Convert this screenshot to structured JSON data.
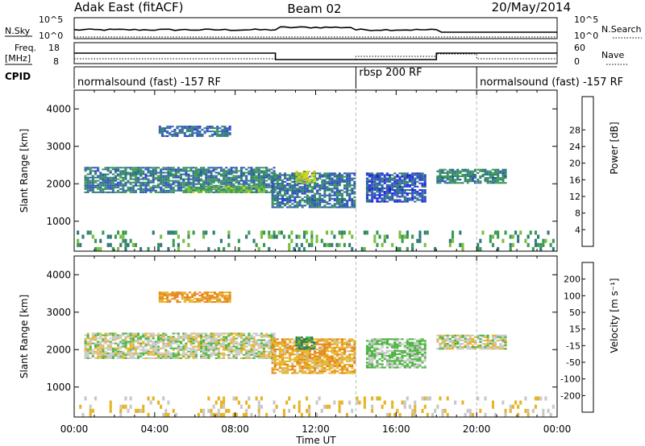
{
  "header": {
    "station": "Adak East (fitACF)",
    "beam": "Beam 02",
    "date": "20/May/2014"
  },
  "noise_panel": {
    "left_label": "N.Sky",
    "right_label": "N.Search",
    "left_ticks": [
      "10^5",
      "10^0"
    ],
    "right_ticks": [
      "10^5",
      "10^0"
    ]
  },
  "freq_panel": {
    "left_label_1": "Freq.",
    "left_label_2": "[MHz]",
    "right_label": "Nave",
    "left_ticks": [
      "18",
      "8"
    ],
    "right_ticks": [
      "60",
      "0"
    ]
  },
  "cpid_panel": {
    "label": "CPID",
    "segments": [
      "normalsound (fast) -157 RF",
      "rbsp 200 RF",
      "normalsound (fast) -157 RF"
    ],
    "boundaries_hours": [
      14,
      20
    ]
  },
  "time_axis": {
    "label": "Time UT",
    "ticks": [
      "00:00",
      "04:00",
      "08:00",
      "12:00",
      "16:00",
      "20:00",
      "00:00"
    ]
  },
  "colors": {
    "power": [
      "#1e1ee6",
      "#2d4fc4",
      "#317a7a",
      "#3b9a52",
      "#78c03c",
      "#d6d61e",
      "#f2a21e",
      "#e6641e",
      "#d21e1e"
    ],
    "velocity": [
      "#1e2ed2",
      "#3255a8",
      "#2e7e5a",
      "#48b43c",
      "#c8c8c8",
      "#e6b428",
      "#e68214",
      "#e04614",
      "#d21e1e"
    ]
  },
  "chart_data": [
    {
      "type": "heatmap",
      "title": "Power",
      "xlabel": "Time UT",
      "ylabel": "Slant Range [km]",
      "xlim": [
        0,
        24
      ],
      "ylim": [
        200,
        4500
      ],
      "yticks": [
        "1000",
        "2000",
        "3000",
        "4000"
      ],
      "colorbar": {
        "label": "Power [dB]",
        "ticks": [
          "4",
          "8",
          "12",
          "16",
          "20",
          "24",
          "28"
        ],
        "range": [
          0,
          32
        ]
      },
      "regions": [
        {
          "t_start": 0.5,
          "t_end": 10.0,
          "range_low": 1750,
          "range_high": 2450,
          "power": 9
        },
        {
          "t_start": 5.5,
          "t_end": 9.5,
          "range_low": 1750,
          "range_high": 1950,
          "power": 14
        },
        {
          "t_start": 4.2,
          "t_end": 7.8,
          "range_low": 3250,
          "range_high": 3550,
          "power": 7
        },
        {
          "t_start": 9.8,
          "t_end": 14.0,
          "range_low": 1350,
          "range_high": 2300,
          "power": 8
        },
        {
          "t_start": 11.0,
          "t_end": 12.0,
          "range_low": 2000,
          "range_high": 2350,
          "power": 18
        },
        {
          "t_start": 14.5,
          "t_end": 17.5,
          "range_low": 1500,
          "range_high": 2300,
          "power": 6
        },
        {
          "t_start": 18.0,
          "t_end": 21.5,
          "range_low": 2000,
          "range_high": 2400,
          "power": 10
        },
        {
          "t_start": 0.0,
          "t_end": 24.0,
          "range_low": 200,
          "range_high": 750,
          "power": 12
        }
      ]
    },
    {
      "type": "heatmap",
      "title": "Velocity",
      "xlabel": "Time UT",
      "ylabel": "Slant Range [km]",
      "xlim": [
        0,
        24
      ],
      "ylim": [
        200,
        4500
      ],
      "yticks": [
        "1000",
        "2000",
        "3000",
        "4000"
      ],
      "colorbar": {
        "label": "Velocity [m s⁻¹]",
        "ticks": [
          "200",
          "100",
          "50",
          "15",
          "-15",
          "-50",
          "-100",
          "-200"
        ],
        "range": [
          -250,
          250
        ]
      },
      "regions": [
        {
          "t_start": 0.5,
          "t_end": 10.0,
          "range_low": 1750,
          "range_high": 2450,
          "velocity": 0
        },
        {
          "t_start": 4.2,
          "t_end": 7.8,
          "range_low": 3250,
          "range_high": 3550,
          "velocity": -60
        },
        {
          "t_start": 9.8,
          "t_end": 14.0,
          "range_low": 1350,
          "range_high": 2300,
          "velocity": -40
        },
        {
          "t_start": 11.0,
          "t_end": 12.0,
          "range_low": 2000,
          "range_high": 2350,
          "velocity": 60
        },
        {
          "t_start": 14.5,
          "t_end": 17.5,
          "range_low": 1500,
          "range_high": 2300,
          "velocity": 20
        },
        {
          "t_start": 18.0,
          "t_end": 21.5,
          "range_low": 2000,
          "range_high": 2400,
          "velocity": 0
        },
        {
          "t_start": 0.0,
          "t_end": 24.0,
          "range_low": 200,
          "range_high": 750,
          "velocity": -20
        }
      ]
    }
  ]
}
